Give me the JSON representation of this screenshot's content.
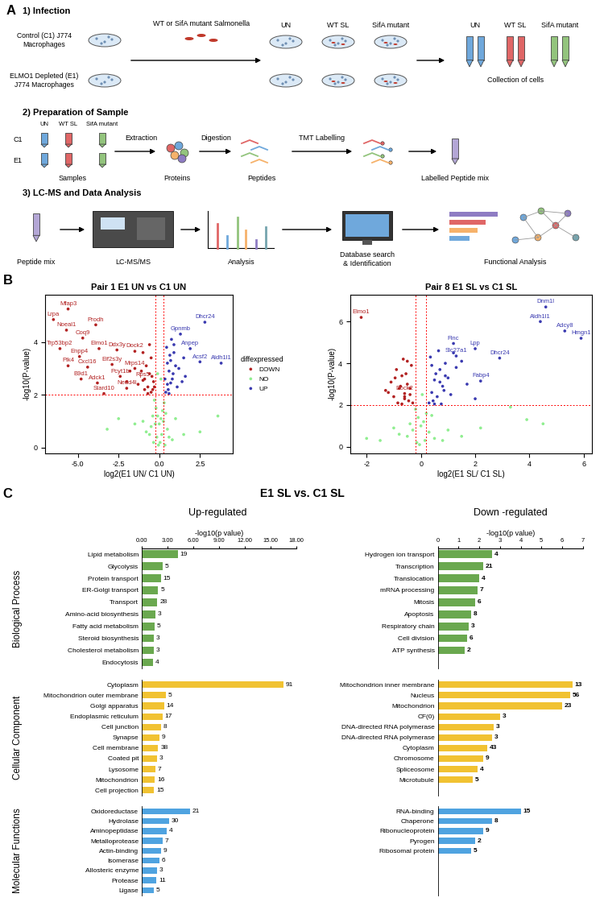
{
  "panel_a": {
    "label": "A",
    "step1": {
      "title": "1) Infection",
      "cells": [
        "Control (C1) J774\nMacrophages",
        "ELMO1 Depleted (E1)\nJ774 Macrophages"
      ],
      "bacteria": "WT or SifA mutant Salmonella",
      "conditions": [
        "UN",
        "WT SL",
        "SifA mutant"
      ],
      "collection": "Collection of cells"
    },
    "step2": {
      "title": "2) Preparation of Sample",
      "rows": [
        "C1",
        "E1"
      ],
      "conditions": [
        "UN",
        "WT SL",
        "SifA mutant"
      ],
      "stages": [
        "Samples",
        "Extraction",
        "Proteins",
        "Digestion",
        "Peptides",
        "TMT Labelling",
        "Labelled Peptide mix"
      ]
    },
    "step3": {
      "title": "3) LC-MS and Data Analysis",
      "stages": [
        "Peptide mix",
        "LC-MS/MS",
        "Analysis",
        "Database search\n& Identification",
        "Functional Analysis"
      ]
    }
  },
  "panel_b": {
    "label": "B"
  },
  "panel_c": {
    "label": "C",
    "title": "E1 SL vs. C1 SL",
    "columns": [
      "Up-regulated",
      "Down -regulated"
    ],
    "groups": [
      "Biological Process",
      "Cellular Component",
      "Molecular Functions"
    ]
  },
  "chart_data": [
    {
      "type": "scatter",
      "title": "Pair 1 E1 UN vs C1 UN",
      "x_label": "log2(E1 UN/ C1 UN)",
      "y_label": "-log10(P-value)",
      "xlim": [
        -7,
        4.5
      ],
      "ylim": [
        -0.2,
        5.8
      ],
      "xticks": [
        -5.0,
        -2.5,
        0.0,
        2.5
      ],
      "yticks": [
        0,
        2,
        4
      ],
      "vlines": [
        -0.26,
        0.26
      ],
      "hline": 2,
      "legend": "right",
      "legend_title": "diffexpressed",
      "series": [
        {
          "name": "DOWN",
          "color": "#B22222",
          "x": [
            -0.5,
            -0.7,
            -0.9,
            -1.1,
            -0.4,
            -0.6,
            -0.8,
            -1.3,
            -0.5,
            -0.35,
            -0.9,
            -1.0,
            -0.45,
            -0.7,
            -0.3,
            -1.8,
            -2.0,
            -0.6
          ],
          "y": [
            2.1,
            2.3,
            2.6,
            2.9,
            2.2,
            2.8,
            3.1,
            2.4,
            3.4,
            2.5,
            2.2,
            3.6,
            2.7,
            2.05,
            2.3,
            2.9,
            2.5,
            3.9
          ]
        },
        {
          "name": "NO",
          "color": "#90EE90",
          "x": [
            -0.3,
            -0.2,
            -0.1,
            0.0,
            0.1,
            0.2,
            0.3,
            -0.4,
            0.4,
            -0.5,
            0.5,
            -0.15,
            0.15,
            -0.05,
            0.05,
            -0.25,
            0.25,
            -0.6,
            0.6,
            -0.8,
            0.8,
            1.0,
            -1.0,
            -1.5,
            1.5,
            -2.5,
            2.5,
            -3.2,
            3.6,
            -0.35,
            0.35,
            0.1,
            -0.1
          ],
          "y": [
            1.8,
            1.5,
            1.2,
            0.9,
            1.1,
            1.4,
            1.7,
            1.2,
            1.3,
            0.8,
            0.7,
            0.4,
            0.5,
            0.1,
            0.2,
            0.9,
            1.0,
            0.5,
            0.4,
            0.6,
            0.3,
            1.1,
            1.0,
            0.9,
            0.5,
            1.1,
            0.6,
            0.7,
            1.2,
            0.2,
            0.1,
            2.6,
            2.8
          ]
        },
        {
          "name": "UP",
          "color": "#3A3AB0",
          "x": [
            0.4,
            0.5,
            0.6,
            0.7,
            0.8,
            0.9,
            1.0,
            1.1,
            0.45,
            0.55,
            0.65,
            0.75,
            0.85,
            1.2,
            1.4,
            1.5,
            0.35,
            0.6,
            0.9,
            1.6,
            0.5,
            0.7
          ],
          "y": [
            2.1,
            2.4,
            2.9,
            3.3,
            2.6,
            3.6,
            3.1,
            2.3,
            3.8,
            2.2,
            3.5,
            4.1,
            2.8,
            3.0,
            2.5,
            3.4,
            2.6,
            2.05,
            3.9,
            2.7,
            3.2,
            2.45
          ]
        }
      ],
      "labels": [
        {
          "text": "Mfap3",
          "x": -5.6,
          "y": 5.25,
          "series": 0
        },
        {
          "text": "Lrpa",
          "x": -6.5,
          "y": 4.85,
          "series": 0
        },
        {
          "text": "Noeal1",
          "x": -5.7,
          "y": 4.45,
          "series": 0
        },
        {
          "text": "Prodh",
          "x": -3.9,
          "y": 4.65,
          "series": 0
        },
        {
          "text": "Coq9",
          "x": -4.7,
          "y": 4.15,
          "series": 0
        },
        {
          "text": "Trp53bp2",
          "x": -6.1,
          "y": 3.75,
          "series": 0
        },
        {
          "text": "Elmo1",
          "x": -3.7,
          "y": 3.75,
          "series": 0
        },
        {
          "text": "Ddx3y",
          "x": -2.6,
          "y": 3.7,
          "series": 0
        },
        {
          "text": "Dock2",
          "x": -1.5,
          "y": 3.65,
          "series": 0
        },
        {
          "text": "Enpp4",
          "x": -4.9,
          "y": 3.45,
          "series": 0
        },
        {
          "text": "Cxcl16",
          "x": -4.4,
          "y": 3.05,
          "series": 0
        },
        {
          "text": "Plk4",
          "x": -5.6,
          "y": 3.1,
          "series": 0
        },
        {
          "text": "Eif2s3y",
          "x": -2.9,
          "y": 3.15,
          "series": 0
        },
        {
          "text": "Mrps14",
          "x": -1.5,
          "y": 3.0,
          "series": 0
        },
        {
          "text": "B9d1",
          "x": -4.8,
          "y": 2.6,
          "series": 0
        },
        {
          "text": "Adck1",
          "x": -3.8,
          "y": 2.45,
          "series": 0
        },
        {
          "text": "Pcyt1b",
          "x": -2.4,
          "y": 2.7,
          "series": 0
        },
        {
          "text": "Rps5",
          "x": -1.0,
          "y": 2.55,
          "series": 0
        },
        {
          "text": "Nedd4l",
          "x": -2.0,
          "y": 2.25,
          "series": 0
        },
        {
          "text": "Stard10",
          "x": -3.4,
          "y": 2.05,
          "series": 0
        },
        {
          "text": "Dhcr24",
          "x": 2.8,
          "y": 4.75,
          "series": 2
        },
        {
          "text": "Gpnmb",
          "x": 1.3,
          "y": 4.3,
          "series": 2
        },
        {
          "text": "Anpep",
          "x": 1.9,
          "y": 3.75,
          "series": 2
        },
        {
          "text": "Acsf2",
          "x": 2.5,
          "y": 3.25,
          "series": 2
        },
        {
          "text": "Aldh1l1",
          "x": 3.8,
          "y": 3.2,
          "series": 2
        }
      ]
    },
    {
      "type": "scatter",
      "title": "Pair 8 E1 SL vs C1 SL",
      "x_label": "log2(E1 SL/ C1 SL)",
      "y_label": "-log10(P-value)",
      "xlim": [
        -2.6,
        6.3
      ],
      "ylim": [
        -0.3,
        7.3
      ],
      "xticks": [
        -2,
        0,
        2,
        4,
        6
      ],
      "yticks": [
        0,
        2,
        4,
        6
      ],
      "vlines": [
        -0.2,
        0.2
      ],
      "hline": 2,
      "series": [
        {
          "name": "DOWN",
          "color": "#B22222",
          "x": [
            -0.3,
            -0.4,
            -0.5,
            -0.6,
            -0.7,
            -0.8,
            -0.9,
            -1.0,
            -1.1,
            -1.2,
            -0.35,
            -0.45,
            -0.55,
            -0.65,
            -0.75,
            -0.85,
            -1.3,
            -0.5,
            -0.7,
            -0.95,
            -0.4,
            -0.6
          ],
          "y": [
            2.1,
            2.5,
            3.0,
            2.3,
            3.4,
            2.8,
            3.7,
            2.4,
            3.1,
            2.6,
            3.9,
            2.2,
            3.5,
            4.2,
            2.9,
            2.1,
            2.7,
            4.1,
            2.05,
            3.3,
            2.8,
            2.4
          ]
        },
        {
          "name": "NO",
          "color": "#90EE90",
          "x": [
            -0.2,
            -0.1,
            0.0,
            0.1,
            0.2,
            -0.3,
            0.3,
            -0.5,
            0.5,
            -0.8,
            0.8,
            -1.0,
            1.0,
            -1.5,
            1.5,
            -2.0,
            2.2,
            3.3,
            3.9,
            4.5,
            -0.15,
            0.15,
            -0.05,
            0.05,
            -0.4,
            0.4
          ],
          "y": [
            1.8,
            1.4,
            1.0,
            1.2,
            1.6,
            0.8,
            0.7,
            0.5,
            0.4,
            0.6,
            0.3,
            0.9,
            0.8,
            0.3,
            0.5,
            0.4,
            0.9,
            1.9,
            1.3,
            1.1,
            0.2,
            0.3,
            0.1,
            2.5,
            1.1,
            1.5
          ]
        },
        {
          "name": "UP",
          "color": "#3A3AB0",
          "x": [
            0.3,
            0.4,
            0.5,
            0.6,
            0.7,
            0.8,
            0.9,
            1.0,
            1.1,
            1.3,
            1.5,
            0.35,
            0.45,
            0.55,
            0.65,
            0.75,
            0.85,
            1.7,
            2.0,
            0.5,
            0.7,
            1.2,
            0.4,
            0.9
          ],
          "y": [
            2.1,
            2.6,
            3.2,
            2.4,
            3.7,
            2.9,
            4.0,
            3.3,
            2.5,
            3.8,
            4.1,
            4.3,
            2.2,
            3.5,
            4.6,
            2.05,
            2.7,
            3.0,
            2.3,
            2.05,
            3.1,
            4.5,
            3.9,
            3.4
          ]
        }
      ],
      "labels": [
        {
          "text": "Elmo1",
          "x": -2.2,
          "y": 6.2,
          "series": 0
        },
        {
          "text": "Dock2",
          "x": -0.6,
          "y": 2.55,
          "series": 0
        },
        {
          "text": "Dnm1l",
          "x": 4.6,
          "y": 6.7,
          "series": 2
        },
        {
          "text": "Aldh1l1",
          "x": 4.4,
          "y": 6.0,
          "series": 2
        },
        {
          "text": "Adcy8",
          "x": 5.3,
          "y": 5.55,
          "series": 2
        },
        {
          "text": "Hmgn1",
          "x": 5.9,
          "y": 5.2,
          "series": 2
        },
        {
          "text": "Flnc",
          "x": 1.2,
          "y": 4.95,
          "series": 2
        },
        {
          "text": "Lpp",
          "x": 2.0,
          "y": 4.7,
          "series": 2
        },
        {
          "text": "Slc27a1",
          "x": 1.3,
          "y": 4.35,
          "series": 2
        },
        {
          "text": "Dhcr24",
          "x": 2.9,
          "y": 4.25,
          "series": 2
        },
        {
          "text": "Fabp4",
          "x": 2.2,
          "y": 3.15,
          "series": 2
        }
      ]
    },
    {
      "type": "bar",
      "orientation": "horizontal",
      "color": "#6AA84F",
      "x_label": "-log10(p value)",
      "xlim": [
        0,
        18
      ],
      "xticks": [
        {
          "value": 0,
          "label": "0.00"
        },
        {
          "value": 3,
          "label": "3.00"
        },
        {
          "value": 6,
          "label": "6.00"
        },
        {
          "value": 9,
          "label": "9.00"
        },
        {
          "value": 12,
          "label": "12.00"
        },
        {
          "value": 15,
          "label": "15.00"
        },
        {
          "value": 18,
          "label": "18.00"
        }
      ],
      "categories": [
        "Lipid metabolism",
        "Glycolysis",
        "Protein transport",
        "ER-Golgi transport",
        "Transport",
        "Amino-acid biosynthesis",
        "Fatty acid metabolism",
        "Steroid biosynthesis",
        "Cholesterol metabolism",
        "Endocytosis"
      ],
      "values": [
        4.2,
        2.4,
        2.2,
        1.9,
        1.8,
        1.6,
        1.5,
        1.4,
        1.4,
        1.3
      ],
      "counts": [
        19,
        5,
        15,
        5,
        28,
        3,
        5,
        3,
        3,
        4
      ]
    },
    {
      "type": "bar",
      "orientation": "horizontal",
      "color": "#F1C232",
      "xlim": [
        0,
        18
      ],
      "tick_labels": "y",
      "categories": [
        "Cytoplasm",
        "Mitochondrion outer membrane",
        "Golgi apparatus",
        "Endoplasmic reticulum",
        "Cell junction",
        "Synapse",
        "Cell membrane",
        "Coated pit",
        "Lysosome",
        "Mitochondrion",
        "Cell projection"
      ],
      "values": [
        16.5,
        2.8,
        2.6,
        2.4,
        2.2,
        2.0,
        1.9,
        1.8,
        1.6,
        1.5,
        1.4
      ],
      "counts": [
        91,
        5,
        14,
        17,
        8,
        9,
        38,
        3,
        7,
        16,
        15
      ]
    },
    {
      "type": "bar",
      "orientation": "horizontal",
      "color": "#4FA3E0",
      "xlim": [
        0,
        18
      ],
      "tick_labels": "y",
      "categories": [
        "Oxidoreductase",
        "Hydrolase",
        "Aminopeptidase",
        "Metalloprotease",
        "Actin-binding",
        "Isomerase",
        "Allosteric enzyme",
        "Protease",
        "Ligase"
      ],
      "values": [
        5.6,
        3.2,
        2.9,
        2.4,
        2.2,
        2.0,
        1.8,
        1.7,
        1.4
      ],
      "counts": [
        21,
        30,
        4,
        7,
        9,
        6,
        3,
        11,
        5
      ]
    },
    {
      "type": "bar",
      "orientation": "horizontal",
      "color": "#6AA84F",
      "x_label": "-log10(p value)",
      "xlim": [
        0,
        7
      ],
      "xticks": [
        0,
        1,
        2,
        3,
        4,
        5,
        6,
        7
      ],
      "categories": [
        "Hydrogen ion transport",
        "Transcription",
        "Translocation",
        "mRNA processing",
        "Mitosis",
        "Apoptosis",
        "Respiratory chain",
        "Cell division",
        "ATP synthesis"
      ],
      "values": [
        2.6,
        2.2,
        2.0,
        1.9,
        1.8,
        1.6,
        1.5,
        1.4,
        1.3
      ],
      "counts": [
        4,
        21,
        4,
        7,
        6,
        8,
        3,
        6,
        2
      ]
    },
    {
      "type": "bar",
      "orientation": "horizontal",
      "color": "#F1C232",
      "xlim": [
        0,
        7
      ],
      "tick_labels": "y",
      "categories": [
        "Mitochondrion inner membrane",
        "Nucleus",
        "Mitochondrion",
        "CF(0)",
        "DNA-directed RNA polymerase",
        "DNA-directed RNA polymerase",
        "Cytoplasm",
        "Chromosome",
        "Spliceosome",
        "Microtubule"
      ],
      "values": [
        6.5,
        6.4,
        6.0,
        3.0,
        2.7,
        2.6,
        2.4,
        2.2,
        1.9,
        1.7
      ],
      "counts": [
        13,
        56,
        23,
        3,
        3,
        3,
        43,
        9,
        4,
        5
      ]
    },
    {
      "type": "bar",
      "orientation": "horizontal",
      "color": "#4FA3E0",
      "xlim": [
        0,
        7
      ],
      "tick_labels": "y",
      "categories": [
        "RNA-binding",
        "Chaperone",
        "Ribonucleoprotein",
        "Pyrogen",
        "Ribosomal protein"
      ],
      "values": [
        4.0,
        2.6,
        2.2,
        1.8,
        1.6
      ],
      "counts": [
        15,
        8,
        9,
        2,
        5
      ]
    }
  ]
}
